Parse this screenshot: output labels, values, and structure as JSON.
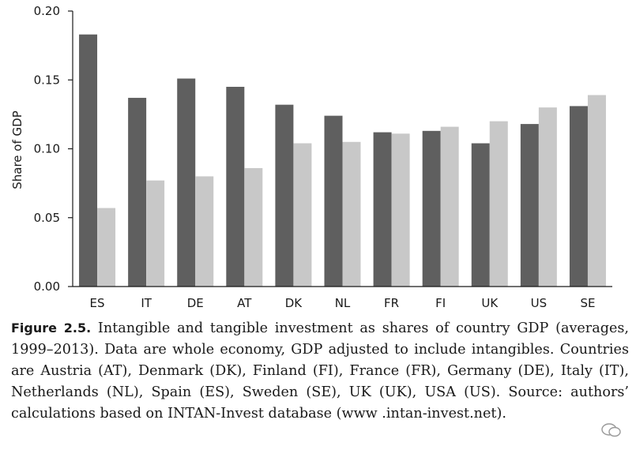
{
  "chart_data": {
    "type": "bar",
    "title": "",
    "xlabel": "",
    "ylabel": "Share of GDP",
    "ylim": [
      0,
      0.2
    ],
    "yticks": [
      "0.00",
      "0.05",
      "0.10",
      "0.15",
      "0.20"
    ],
    "ytick_values": [
      0,
      0.05,
      0.1,
      0.15,
      0.2
    ],
    "categories": [
      "ES",
      "IT",
      "DE",
      "AT",
      "DK",
      "NL",
      "FR",
      "FI",
      "UK",
      "US",
      "SE"
    ],
    "series": [
      {
        "name": "Tangible investment",
        "color": "#5f5f5f",
        "values": [
          0.183,
          0.137,
          0.151,
          0.145,
          0.132,
          0.124,
          0.112,
          0.113,
          0.104,
          0.118,
          0.131
        ]
      },
      {
        "name": "Intangible investment",
        "color": "#c8c8c8",
        "values": [
          0.057,
          0.077,
          0.08,
          0.086,
          0.104,
          0.105,
          0.111,
          0.116,
          0.12,
          0.13,
          0.139
        ]
      }
    ],
    "grid": false,
    "legend": "none"
  },
  "caption": {
    "label": "Figure 2.5.",
    "text": " Intangible and tangible investment as shares of country GDP (averages, 1999–2013). Data are whole economy, GDP adjusted to include intangibles. Countries are Austria (AT), Denmark (DK), Finland (FI), France (FR), Germany (DE), Italy (IT), Netherlands (NL), Spain (ES), Sweden (SE), UK (UK), USA (US). Source: authors’ calculations based on INTAN-Invest database (www .intan-invest.net)."
  }
}
